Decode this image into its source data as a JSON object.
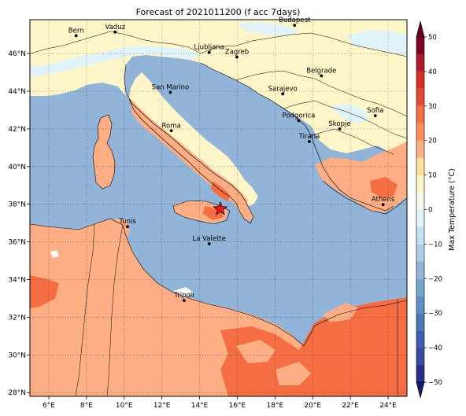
{
  "title": "Forecast of 2021011200 (f acc 7days)",
  "map": {
    "lon_range": [
      5.0,
      25.0
    ],
    "lat_range": [
      27.8,
      47.8
    ],
    "lon_ticks": [
      {
        "value": 6,
        "label": "6°E"
      },
      {
        "value": 8,
        "label": "8°E"
      },
      {
        "value": 10,
        "label": "10°E"
      },
      {
        "value": 12,
        "label": "12°E"
      },
      {
        "value": 14,
        "label": "14°E"
      },
      {
        "value": 16,
        "label": "16°E"
      },
      {
        "value": 18,
        "label": "18°E"
      },
      {
        "value": 20,
        "label": "20°E"
      },
      {
        "value": 22,
        "label": "22°E"
      },
      {
        "value": 24,
        "label": "24°E"
      }
    ],
    "lat_ticks": [
      {
        "value": 28,
        "label": "28°N"
      },
      {
        "value": 30,
        "label": "30°N"
      },
      {
        "value": 32,
        "label": "32°N"
      },
      {
        "value": 34,
        "label": "34°N"
      },
      {
        "value": 36,
        "label": "36°N"
      },
      {
        "value": 38,
        "label": "38°N"
      },
      {
        "value": 40,
        "label": "40°N"
      },
      {
        "value": 42,
        "label": "42°N"
      },
      {
        "value": 44,
        "label": "44°N"
      },
      {
        "value": 46,
        "label": "46°N"
      }
    ],
    "grid": true,
    "colors": {
      "sea": "#91b4d8",
      "north_land": "#fef6c8",
      "light_blue": "#e0f3f8",
      "warm_10_20": "#fdae85",
      "warm_20_30": "#f46d43"
    },
    "cities": [
      {
        "name": "Bern",
        "lon": 7.45,
        "lat": 46.95
      },
      {
        "name": "Vaduz",
        "lon": 9.52,
        "lat": 47.14
      },
      {
        "name": "Budapest",
        "lon": 19.04,
        "lat": 47.5
      },
      {
        "name": "Ljubljana",
        "lon": 14.51,
        "lat": 46.06
      },
      {
        "name": "Zagreb",
        "lon": 15.98,
        "lat": 45.81
      },
      {
        "name": "San Marino",
        "lon": 12.45,
        "lat": 43.94
      },
      {
        "name": "Belgrade",
        "lon": 20.46,
        "lat": 44.82
      },
      {
        "name": "Sarajevo",
        "lon": 18.41,
        "lat": 43.86
      },
      {
        "name": "Roma",
        "lon": 12.5,
        "lat": 41.9
      },
      {
        "name": "Podgorica",
        "lon": 19.26,
        "lat": 42.44
      },
      {
        "name": "Skopje",
        "lon": 21.43,
        "lat": 42.0
      },
      {
        "name": "Sofia",
        "lon": 23.32,
        "lat": 42.7
      },
      {
        "name": "Tirana",
        "lon": 19.82,
        "lat": 41.33
      },
      {
        "name": "Athens",
        "lon": 23.73,
        "lat": 37.98
      },
      {
        "name": "Tunis",
        "lon": 10.18,
        "lat": 36.81
      },
      {
        "name": "La Valette",
        "lon": 14.51,
        "lat": 35.9
      },
      {
        "name": "Tripoli",
        "lon": 13.18,
        "lat": 32.89
      }
    ],
    "marker": {
      "type": "star",
      "lon": 15.1,
      "lat": 37.75,
      "color": "#e31a1c"
    }
  },
  "colorbar": {
    "label": "Max Temperature (°C)",
    "range": [
      -50,
      50
    ],
    "ticks": [
      {
        "value": 50,
        "label": "50"
      },
      {
        "value": 40,
        "label": "40"
      },
      {
        "value": 30,
        "label": "30"
      },
      {
        "value": 20,
        "label": "20"
      },
      {
        "value": 10,
        "label": "10"
      },
      {
        "value": 0,
        "label": "0"
      },
      {
        "value": -10,
        "label": "−10"
      },
      {
        "value": -20,
        "label": "−20"
      },
      {
        "value": -30,
        "label": "−30"
      },
      {
        "value": -40,
        "label": "−40"
      },
      {
        "value": -50,
        "label": "−50"
      }
    ],
    "bands": [
      {
        "from": -50,
        "to": -45,
        "color": "#2b2c8f"
      },
      {
        "from": -45,
        "to": -40,
        "color": "#3a48a8"
      },
      {
        "from": -40,
        "to": -35,
        "color": "#3d5db0"
      },
      {
        "from": -35,
        "to": -30,
        "color": "#4a78b8"
      },
      {
        "from": -30,
        "to": -25,
        "color": "#5b8fc5"
      },
      {
        "from": -25,
        "to": -20,
        "color": "#74a9cf"
      },
      {
        "from": -20,
        "to": -15,
        "color": "#91b4d8"
      },
      {
        "from": -15,
        "to": -10,
        "color": "#abd0e6"
      },
      {
        "from": -10,
        "to": -5,
        "color": "#c6e2ee"
      },
      {
        "from": -5,
        "to": 0,
        "color": "#e0f3f8"
      },
      {
        "from": 0,
        "to": 5,
        "color": "#f4fbe8"
      },
      {
        "from": 5,
        "to": 10,
        "color": "#fef6c8"
      },
      {
        "from": 10,
        "to": 15,
        "color": "#fee09a"
      },
      {
        "from": 15,
        "to": 20,
        "color": "#fdae85"
      },
      {
        "from": 20,
        "to": 25,
        "color": "#fc8d59"
      },
      {
        "from": 25,
        "to": 30,
        "color": "#f46d43"
      },
      {
        "from": 30,
        "to": 35,
        "color": "#e34a33"
      },
      {
        "from": 35,
        "to": 40,
        "color": "#d73027"
      },
      {
        "from": 40,
        "to": 45,
        "color": "#b2182b"
      },
      {
        "from": 45,
        "to": 50,
        "color": "#800026"
      }
    ],
    "under_color": "#1a1a6e",
    "over_color": "#67001f"
  }
}
